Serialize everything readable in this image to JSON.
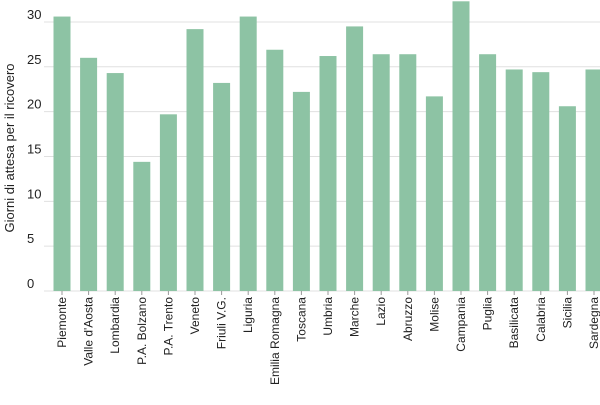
{
  "chart_data": {
    "type": "bar",
    "title": "",
    "xlabel": "",
    "ylabel": "Giorni di attesa per il ricovero",
    "ylim": [
      0,
      32
    ],
    "yticks": [
      0,
      5,
      10,
      15,
      20,
      25,
      30
    ],
    "grid": "horizontal",
    "categories": [
      "Piemonte",
      "Valle d'Aosta",
      "Lombardia",
      "P.A. Bolzano",
      "P.A. Trento",
      "Veneto",
      "Friuli V.G.",
      "Liguria",
      "Emilia Romagna",
      "Toscana",
      "Umbria",
      "Marche",
      "Lazio",
      "Abruzzo",
      "Molise",
      "Campania",
      "Puglia",
      "Basilicata",
      "Calabria",
      "Sicilia",
      "Sardegna"
    ],
    "values": [
      30.6,
      26.0,
      24.3,
      14.4,
      19.7,
      29.2,
      23.2,
      30.6,
      26.9,
      22.2,
      26.2,
      29.5,
      26.4,
      26.4,
      21.7,
      32.3,
      26.4,
      24.7,
      24.4,
      20.6,
      24.7
    ],
    "bar_color": "#8dc3a4",
    "grid_color": "#e0e0e0"
  }
}
